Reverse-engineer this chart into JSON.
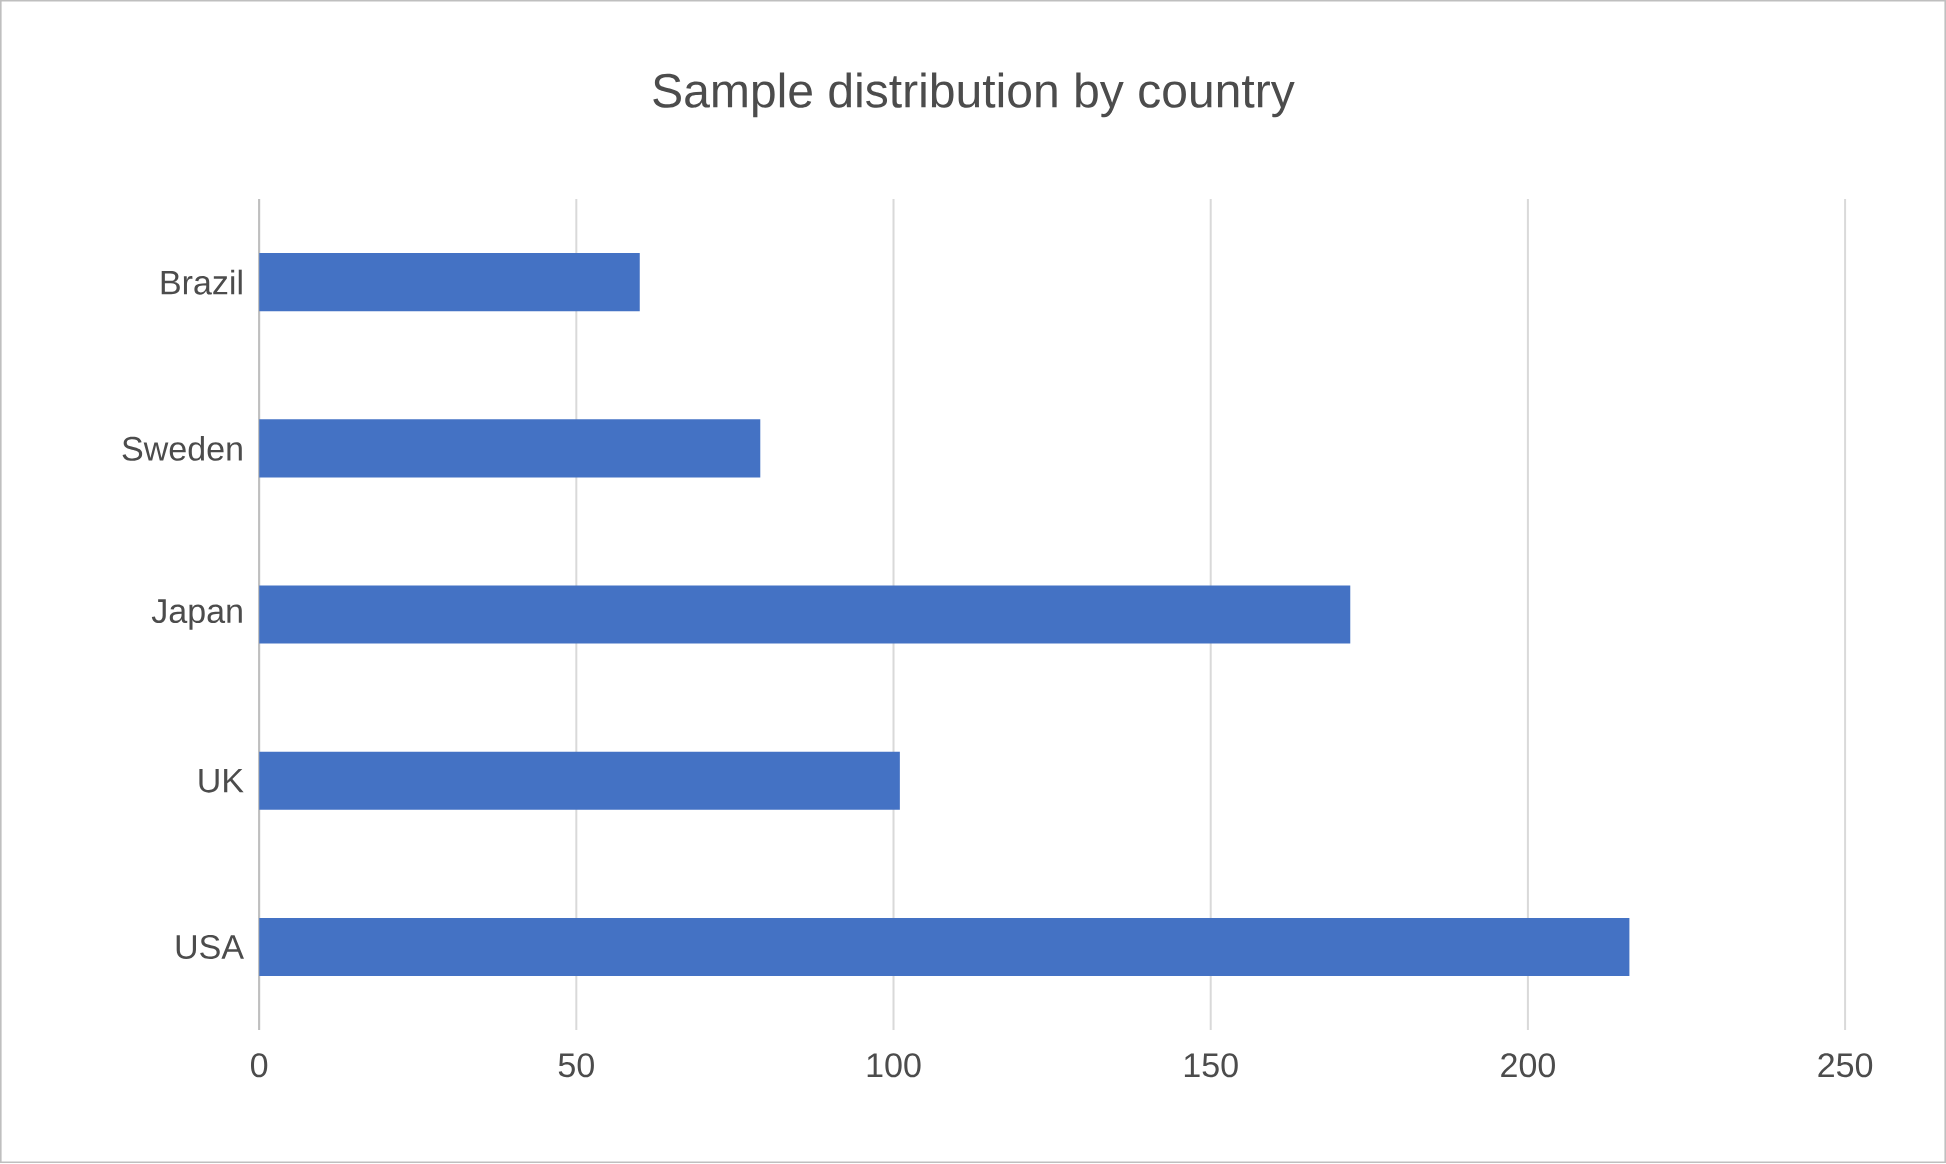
{
  "chart_data": {
    "type": "bar",
    "orientation": "horizontal",
    "title": "Sample distribution by country",
    "categories": [
      "Brazil",
      "Sweden",
      "Japan",
      "UK",
      "USA"
    ],
    "values": [
      60,
      79,
      172,
      101,
      216
    ],
    "color": "#4472c4",
    "xlim": [
      0,
      250
    ],
    "xticks": [
      0,
      50,
      100,
      150,
      200,
      250
    ],
    "grid": "x"
  }
}
